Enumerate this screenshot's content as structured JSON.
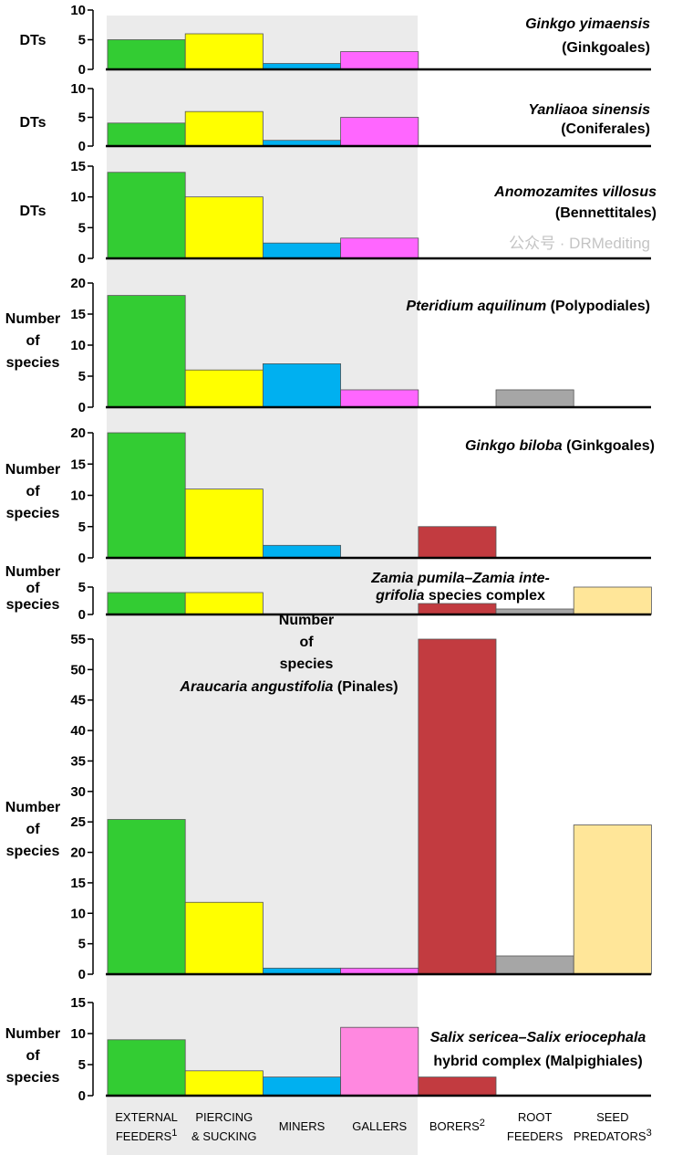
{
  "chart_data": {
    "type": "bar",
    "categories": [
      {
        "lines": [
          "EXTERNAL",
          "FEEDERS"
        ],
        "sup": "1"
      },
      {
        "lines": [
          "PIERCING",
          "& SUCKING"
        ],
        "sup": ""
      },
      {
        "lines": [
          "MINERS"
        ],
        "sup": ""
      },
      {
        "lines": [
          "GALLERS"
        ],
        "sup": ""
      },
      {
        "lines": [
          "BORERS"
        ],
        "sup": "2"
      },
      {
        "lines": [
          "ROOT",
          "FEEDERS"
        ],
        "sup": ""
      },
      {
        "lines": [
          "SEED",
          "PREDATORS"
        ],
        "sup": "3"
      }
    ],
    "colors": [
      "#33cc33",
      "#ffff00",
      "#00b0f0",
      "#ff66ff",
      "#c23b40",
      "#a6a6a6",
      "#ffe699"
    ],
    "panels": [
      {
        "ylabel": [
          "DTs"
        ],
        "ylim": [
          0,
          10
        ],
        "ticks": [
          0,
          5,
          10
        ],
        "title": [
          [
            [
              "Ginkgo yimaensis",
              true
            ]
          ],
          [
            [
              "(Ginkgoales)",
              false
            ]
          ]
        ],
        "values": [
          5,
          6,
          1,
          3,
          null,
          null,
          null
        ]
      },
      {
        "ylabel": [
          "DTs"
        ],
        "ylim": [
          0,
          10
        ],
        "ticks": [
          0,
          5,
          10
        ],
        "title": [
          [
            [
              "Yanliaoa sinensis",
              true
            ]
          ],
          [
            [
              "(Coniferales)",
              false
            ]
          ]
        ],
        "values": [
          4,
          6,
          1,
          5,
          null,
          null,
          null
        ]
      },
      {
        "ylabel": [
          "DTs"
        ],
        "ylim": [
          0,
          15
        ],
        "ticks": [
          0,
          5,
          10,
          15
        ],
        "title": [
          [
            [
              "Anomozamites villosus",
              true
            ]
          ],
          [
            [
              "(Bennettitales)",
              false
            ]
          ]
        ],
        "values": [
          14,
          10,
          2.5,
          3.3,
          null,
          null,
          null
        ]
      },
      {
        "ylabel": [
          "Number",
          "of",
          "species"
        ],
        "ylim": [
          0,
          20
        ],
        "ticks": [
          0,
          5,
          10,
          15,
          20
        ],
        "title": [
          [
            [
              "Pteridium aquilinum",
              true
            ],
            [
              " (Polypodiales)",
              false
            ]
          ]
        ],
        "values": [
          18,
          6,
          7,
          2.8,
          0,
          2.8,
          0
        ]
      },
      {
        "ylabel": [
          "Number",
          "of",
          "species"
        ],
        "ylim": [
          0,
          20
        ],
        "ticks": [
          0,
          5,
          10,
          15,
          20
        ],
        "title": [
          [
            [
              "Ginkgo biloba",
              true
            ],
            [
              " (Ginkgoales)",
              false
            ]
          ]
        ],
        "values": [
          20,
          11,
          2,
          0,
          5,
          0,
          0
        ]
      },
      {
        "ylabel": [
          "Number",
          "of",
          "species"
        ],
        "ylim": [
          0,
          5
        ],
        "ticks": [
          0,
          5
        ],
        "title": [
          [
            [
              "Zamia pumila–Zamia inte-",
              true
            ]
          ],
          [
            [
              "grifolia",
              true
            ],
            [
              " species complex",
              false
            ]
          ]
        ],
        "values": [
          4,
          4,
          0,
          0,
          2,
          1,
          5
        ]
      },
      {
        "ylabel": [
          "Number",
          "of",
          "species"
        ],
        "ylim": [
          0,
          55
        ],
        "ticks": [
          0,
          5,
          10,
          15,
          20,
          25,
          30,
          35,
          40,
          45,
          50,
          55
        ],
        "extra_label": [
          "Number",
          "of",
          "species"
        ],
        "title": [
          [
            [
              "Araucaria angustifolia",
              true
            ],
            [
              " (Pinales)",
              false
            ]
          ]
        ],
        "values": [
          25.4,
          11.8,
          1,
          1,
          55,
          3,
          24.5
        ]
      },
      {
        "ylabel": [
          "Number",
          "of",
          "species"
        ],
        "ylim": [
          0,
          15
        ],
        "ticks": [
          0,
          5,
          10,
          15
        ],
        "title": [
          [
            [
              "Salix sericea–Salix eriocephala",
              true
            ]
          ],
          [
            [
              "hybrid complex (Malpighiales)",
              false
            ]
          ]
        ],
        "values": [
          9,
          4,
          3,
          11,
          3,
          0,
          0
        ],
        "color_overrides": {
          "3": "#ff88e0"
        }
      }
    ]
  },
  "watermark": "公众号 · DRMediting"
}
